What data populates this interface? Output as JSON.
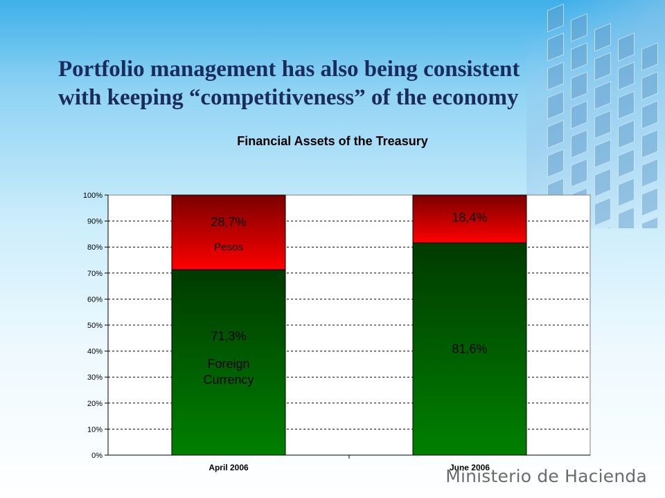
{
  "slide": {
    "title": "Portfolio management has also being consistent\nwith keeping “competitiveness” of the economy",
    "brand": "Ministerio de Hacienda"
  },
  "colors": {
    "title_text": "#1b2b5c",
    "pesos_top": "#7a0000",
    "pesos_bottom": "#ff0000",
    "fx_top": "#003a00",
    "fx_bottom": "#008000"
  },
  "chart_data": {
    "type": "bar",
    "stacked": true,
    "title": "Financial Assets of the Treasury",
    "categories": [
      "April 2006",
      "June 2006"
    ],
    "series": [
      {
        "name": "Foreign Currency",
        "values": [
          71.3,
          81.6
        ],
        "labels": [
          "71,3%",
          "81,6%"
        ],
        "annotation": [
          "Foreign\nCurrency",
          ""
        ]
      },
      {
        "name": "Pesos",
        "values": [
          28.7,
          18.4
        ],
        "labels": [
          "28,7%",
          "18,4%"
        ],
        "annotation": [
          "Pesos",
          ""
        ]
      }
    ],
    "ylim": [
      0,
      100
    ],
    "yticks": [
      "0%",
      "10%",
      "20%",
      "30%",
      "40%",
      "50%",
      "60%",
      "70%",
      "80%",
      "90%",
      "100%"
    ],
    "grid": true,
    "legend": "none"
  }
}
